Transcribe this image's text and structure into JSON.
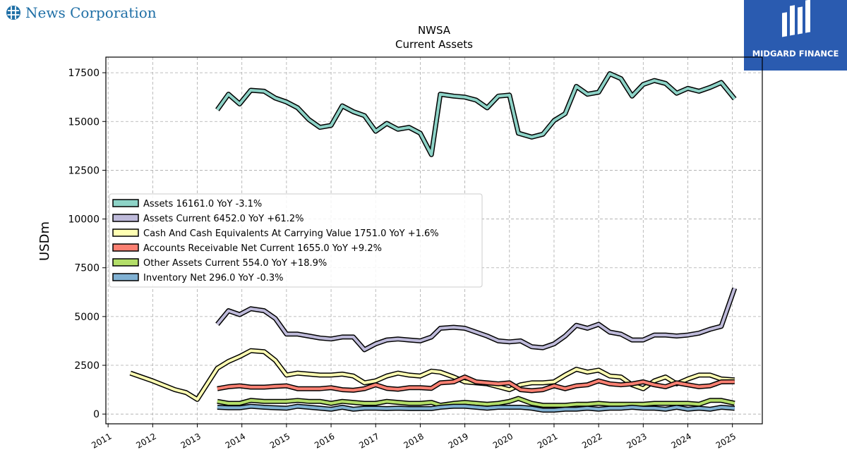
{
  "company": {
    "name": "News Corporation",
    "icon": "globe-grid-icon"
  },
  "watermark": {
    "text": "MIDGARD FINANCE",
    "color": "#2a5bb0"
  },
  "chart_data": {
    "type": "line",
    "title": "NWSA",
    "subtitle": "Current  Assets",
    "ylabel": "USDm",
    "xlabel": "",
    "ylim": [
      -500,
      18300
    ],
    "xlim": [
      2010.95,
      2025.67
    ],
    "yticks": [
      "0",
      "2500",
      "5000",
      "7500",
      "10000",
      "12500",
      "15000",
      "17500"
    ],
    "xticks": [
      "2011",
      "2012",
      "2013",
      "2014",
      "2015",
      "2016",
      "2017",
      "2018",
      "2019",
      "2020",
      "2021",
      "2022",
      "2023",
      "2024",
      "2025"
    ],
    "grid": true,
    "legend_position": "center-left",
    "series": [
      {
        "name": "Assets  16161.0 YoY -3.1%",
        "color": "#8dd3c7",
        "points": [
          [
            2013.45,
            15600
          ],
          [
            2013.7,
            16400
          ],
          [
            2013.95,
            15900
          ],
          [
            2014.2,
            16600
          ],
          [
            2014.5,
            16550
          ],
          [
            2014.75,
            16200
          ],
          [
            2015.0,
            16000
          ],
          [
            2015.25,
            15700
          ],
          [
            2015.5,
            15100
          ],
          [
            2015.75,
            14700
          ],
          [
            2016.0,
            14800
          ],
          [
            2016.25,
            15800
          ],
          [
            2016.5,
            15500
          ],
          [
            2016.75,
            15300
          ],
          [
            2017.0,
            14500
          ],
          [
            2017.25,
            14900
          ],
          [
            2017.5,
            14600
          ],
          [
            2017.75,
            14700
          ],
          [
            2018.0,
            14400
          ],
          [
            2018.25,
            13300
          ],
          [
            2018.45,
            16400
          ],
          [
            2018.75,
            16300
          ],
          [
            2019.0,
            16250
          ],
          [
            2019.25,
            16100
          ],
          [
            2019.5,
            15700
          ],
          [
            2019.75,
            16300
          ],
          [
            2020.0,
            16350
          ],
          [
            2020.2,
            14400
          ],
          [
            2020.5,
            14200
          ],
          [
            2020.75,
            14350
          ],
          [
            2021.0,
            15050
          ],
          [
            2021.25,
            15400
          ],
          [
            2021.5,
            16800
          ],
          [
            2021.75,
            16400
          ],
          [
            2022.0,
            16500
          ],
          [
            2022.25,
            17450
          ],
          [
            2022.5,
            17200
          ],
          [
            2022.75,
            16300
          ],
          [
            2023.0,
            16900
          ],
          [
            2023.25,
            17100
          ],
          [
            2023.5,
            16950
          ],
          [
            2023.75,
            16450
          ],
          [
            2024.0,
            16700
          ],
          [
            2024.25,
            16550
          ],
          [
            2024.5,
            16750
          ],
          [
            2024.75,
            17000
          ],
          [
            2025.05,
            16161
          ]
        ]
      },
      {
        "name": "Assets Current  6452.0 YoY +61.2%",
        "color": "#bebada",
        "points": [
          [
            2013.45,
            4600
          ],
          [
            2013.7,
            5300
          ],
          [
            2013.95,
            5100
          ],
          [
            2014.2,
            5400
          ],
          [
            2014.5,
            5300
          ],
          [
            2014.75,
            4900
          ],
          [
            2015.0,
            4100
          ],
          [
            2015.25,
            4100
          ],
          [
            2015.5,
            4000
          ],
          [
            2015.75,
            3900
          ],
          [
            2016.0,
            3850
          ],
          [
            2016.25,
            3950
          ],
          [
            2016.5,
            3950
          ],
          [
            2016.75,
            3300
          ],
          [
            2017.0,
            3600
          ],
          [
            2017.25,
            3800
          ],
          [
            2017.5,
            3850
          ],
          [
            2017.75,
            3800
          ],
          [
            2018.0,
            3750
          ],
          [
            2018.25,
            3950
          ],
          [
            2018.45,
            4400
          ],
          [
            2018.75,
            4450
          ],
          [
            2019.0,
            4400
          ],
          [
            2019.25,
            4200
          ],
          [
            2019.5,
            4000
          ],
          [
            2019.75,
            3750
          ],
          [
            2020.0,
            3700
          ],
          [
            2020.25,
            3750
          ],
          [
            2020.5,
            3450
          ],
          [
            2020.75,
            3400
          ],
          [
            2021.0,
            3600
          ],
          [
            2021.25,
            4000
          ],
          [
            2021.5,
            4550
          ],
          [
            2021.75,
            4400
          ],
          [
            2022.0,
            4600
          ],
          [
            2022.25,
            4200
          ],
          [
            2022.5,
            4100
          ],
          [
            2022.75,
            3800
          ],
          [
            2023.0,
            3800
          ],
          [
            2023.25,
            4050
          ],
          [
            2023.5,
            4050
          ],
          [
            2023.75,
            4000
          ],
          [
            2024.0,
            4050
          ],
          [
            2024.25,
            4150
          ],
          [
            2024.5,
            4350
          ],
          [
            2024.75,
            4500
          ],
          [
            2025.05,
            6452
          ]
        ]
      },
      {
        "name": "Cash And Cash Equivalents At Carrying Value  1751.0 YoY +1.6%",
        "color": "#ffffb3",
        "points": [
          [
            2011.5,
            2100
          ],
          [
            2012.0,
            1700
          ],
          [
            2012.5,
            1250
          ],
          [
            2012.75,
            1100
          ],
          [
            2013.0,
            750
          ],
          [
            2013.45,
            2350
          ],
          [
            2013.7,
            2700
          ],
          [
            2013.95,
            2950
          ],
          [
            2014.2,
            3250
          ],
          [
            2014.5,
            3200
          ],
          [
            2014.75,
            2750
          ],
          [
            2015.0,
            2000
          ],
          [
            2015.25,
            2100
          ],
          [
            2015.5,
            2050
          ],
          [
            2015.75,
            2000
          ],
          [
            2016.0,
            2000
          ],
          [
            2016.25,
            2050
          ],
          [
            2016.5,
            1950
          ],
          [
            2016.75,
            1600
          ],
          [
            2017.0,
            1700
          ],
          [
            2017.25,
            1950
          ],
          [
            2017.5,
            2100
          ],
          [
            2017.75,
            2000
          ],
          [
            2018.0,
            1950
          ],
          [
            2018.25,
            2200
          ],
          [
            2018.45,
            2150
          ],
          [
            2018.75,
            1900
          ],
          [
            2019.0,
            1650
          ],
          [
            2019.25,
            1600
          ],
          [
            2019.5,
            1550
          ],
          [
            2019.75,
            1400
          ],
          [
            2020.0,
            1250
          ],
          [
            2020.25,
            1500
          ],
          [
            2020.5,
            1600
          ],
          [
            2020.75,
            1600
          ],
          [
            2021.0,
            1650
          ],
          [
            2021.25,
            2000
          ],
          [
            2021.5,
            2300
          ],
          [
            2021.75,
            2150
          ],
          [
            2022.0,
            2250
          ],
          [
            2022.25,
            1950
          ],
          [
            2022.5,
            1900
          ],
          [
            2022.75,
            1500
          ],
          [
            2023.0,
            1300
          ],
          [
            2023.25,
            1700
          ],
          [
            2023.5,
            1900
          ],
          [
            2023.75,
            1550
          ],
          [
            2024.0,
            1800
          ],
          [
            2024.25,
            2000
          ],
          [
            2024.5,
            2000
          ],
          [
            2024.75,
            1800
          ],
          [
            2025.05,
            1751
          ]
        ]
      },
      {
        "name": "Accounts Receivable Net Current  1655.0 YoY +9.2%",
        "color": "#fb8072",
        "points": [
          [
            2013.45,
            1300
          ],
          [
            2013.7,
            1400
          ],
          [
            2013.95,
            1450
          ],
          [
            2014.2,
            1380
          ],
          [
            2014.5,
            1380
          ],
          [
            2014.75,
            1420
          ],
          [
            2015.0,
            1450
          ],
          [
            2015.25,
            1300
          ],
          [
            2015.5,
            1300
          ],
          [
            2015.75,
            1300
          ],
          [
            2016.0,
            1350
          ],
          [
            2016.25,
            1250
          ],
          [
            2016.5,
            1220
          ],
          [
            2016.75,
            1300
          ],
          [
            2017.0,
            1500
          ],
          [
            2017.25,
            1320
          ],
          [
            2017.5,
            1270
          ],
          [
            2017.75,
            1350
          ],
          [
            2018.0,
            1350
          ],
          [
            2018.25,
            1320
          ],
          [
            2018.45,
            1600
          ],
          [
            2018.75,
            1650
          ],
          [
            2019.0,
            1900
          ],
          [
            2019.25,
            1650
          ],
          [
            2019.5,
            1600
          ],
          [
            2019.75,
            1550
          ],
          [
            2020.0,
            1600
          ],
          [
            2020.25,
            1250
          ],
          [
            2020.5,
            1200
          ],
          [
            2020.75,
            1250
          ],
          [
            2021.0,
            1450
          ],
          [
            2021.25,
            1300
          ],
          [
            2021.5,
            1450
          ],
          [
            2021.75,
            1500
          ],
          [
            2022.0,
            1700
          ],
          [
            2022.25,
            1550
          ],
          [
            2022.5,
            1500
          ],
          [
            2022.75,
            1550
          ],
          [
            2023.0,
            1650
          ],
          [
            2023.25,
            1500
          ],
          [
            2023.5,
            1400
          ],
          [
            2023.75,
            1600
          ],
          [
            2024.0,
            1500
          ],
          [
            2024.25,
            1400
          ],
          [
            2024.5,
            1450
          ],
          [
            2024.75,
            1650
          ],
          [
            2025.05,
            1655
          ]
        ]
      },
      {
        "name": "Other Assets Current  554.0 YoY +18.9%",
        "color": "#b3de69",
        "points": [
          [
            2013.45,
            650
          ],
          [
            2013.7,
            550
          ],
          [
            2013.95,
            550
          ],
          [
            2014.2,
            700
          ],
          [
            2014.5,
            650
          ],
          [
            2014.75,
            650
          ],
          [
            2015.0,
            650
          ],
          [
            2015.25,
            700
          ],
          [
            2015.5,
            650
          ],
          [
            2015.75,
            650
          ],
          [
            2016.0,
            550
          ],
          [
            2016.25,
            650
          ],
          [
            2016.5,
            600
          ],
          [
            2016.75,
            550
          ],
          [
            2017.0,
            550
          ],
          [
            2017.25,
            650
          ],
          [
            2017.5,
            600
          ],
          [
            2017.75,
            550
          ],
          [
            2018.0,
            550
          ],
          [
            2018.25,
            600
          ],
          [
            2018.45,
            450
          ],
          [
            2018.75,
            550
          ],
          [
            2019.0,
            600
          ],
          [
            2019.25,
            550
          ],
          [
            2019.5,
            500
          ],
          [
            2019.75,
            550
          ],
          [
            2020.0,
            650
          ],
          [
            2020.2,
            800
          ],
          [
            2020.5,
            550
          ],
          [
            2020.75,
            450
          ],
          [
            2021.0,
            450
          ],
          [
            2021.25,
            450
          ],
          [
            2021.5,
            500
          ],
          [
            2021.75,
            500
          ],
          [
            2022.0,
            550
          ],
          [
            2022.25,
            500
          ],
          [
            2022.5,
            500
          ],
          [
            2022.75,
            500
          ],
          [
            2023.0,
            500
          ],
          [
            2023.25,
            550
          ],
          [
            2023.5,
            550
          ],
          [
            2023.75,
            550
          ],
          [
            2024.0,
            550
          ],
          [
            2024.25,
            500
          ],
          [
            2024.5,
            700
          ],
          [
            2024.75,
            700
          ],
          [
            2025.05,
            554
          ]
        ]
      },
      {
        "name": "Inventory Net  296.0 YoY -0.3%",
        "color": "#80b1d3",
        "points": [
          [
            2013.45,
            350
          ],
          [
            2013.7,
            320
          ],
          [
            2013.95,
            320
          ],
          [
            2014.2,
            400
          ],
          [
            2014.5,
            350
          ],
          [
            2014.75,
            320
          ],
          [
            2015.0,
            300
          ],
          [
            2015.25,
            400
          ],
          [
            2015.5,
            350
          ],
          [
            2015.75,
            300
          ],
          [
            2016.0,
            250
          ],
          [
            2016.25,
            350
          ],
          [
            2016.5,
            250
          ],
          [
            2016.75,
            300
          ],
          [
            2017.0,
            300
          ],
          [
            2017.25,
            280
          ],
          [
            2017.5,
            300
          ],
          [
            2017.75,
            280
          ],
          [
            2018.0,
            280
          ],
          [
            2018.25,
            280
          ],
          [
            2018.45,
            350
          ],
          [
            2018.75,
            400
          ],
          [
            2019.0,
            400
          ],
          [
            2019.25,
            350
          ],
          [
            2019.5,
            300
          ],
          [
            2019.75,
            350
          ],
          [
            2020.0,
            350
          ],
          [
            2020.25,
            350
          ],
          [
            2020.5,
            300
          ],
          [
            2020.75,
            200
          ],
          [
            2021.0,
            200
          ],
          [
            2021.25,
            250
          ],
          [
            2021.5,
            250
          ],
          [
            2021.75,
            300
          ],
          [
            2022.0,
            250
          ],
          [
            2022.25,
            300
          ],
          [
            2022.5,
            300
          ],
          [
            2022.75,
            350
          ],
          [
            2023.0,
            300
          ],
          [
            2023.25,
            300
          ],
          [
            2023.5,
            250
          ],
          [
            2023.75,
            350
          ],
          [
            2024.0,
            250
          ],
          [
            2024.25,
            300
          ],
          [
            2024.5,
            250
          ],
          [
            2024.75,
            350
          ],
          [
            2025.05,
            296
          ]
        ]
      }
    ]
  }
}
